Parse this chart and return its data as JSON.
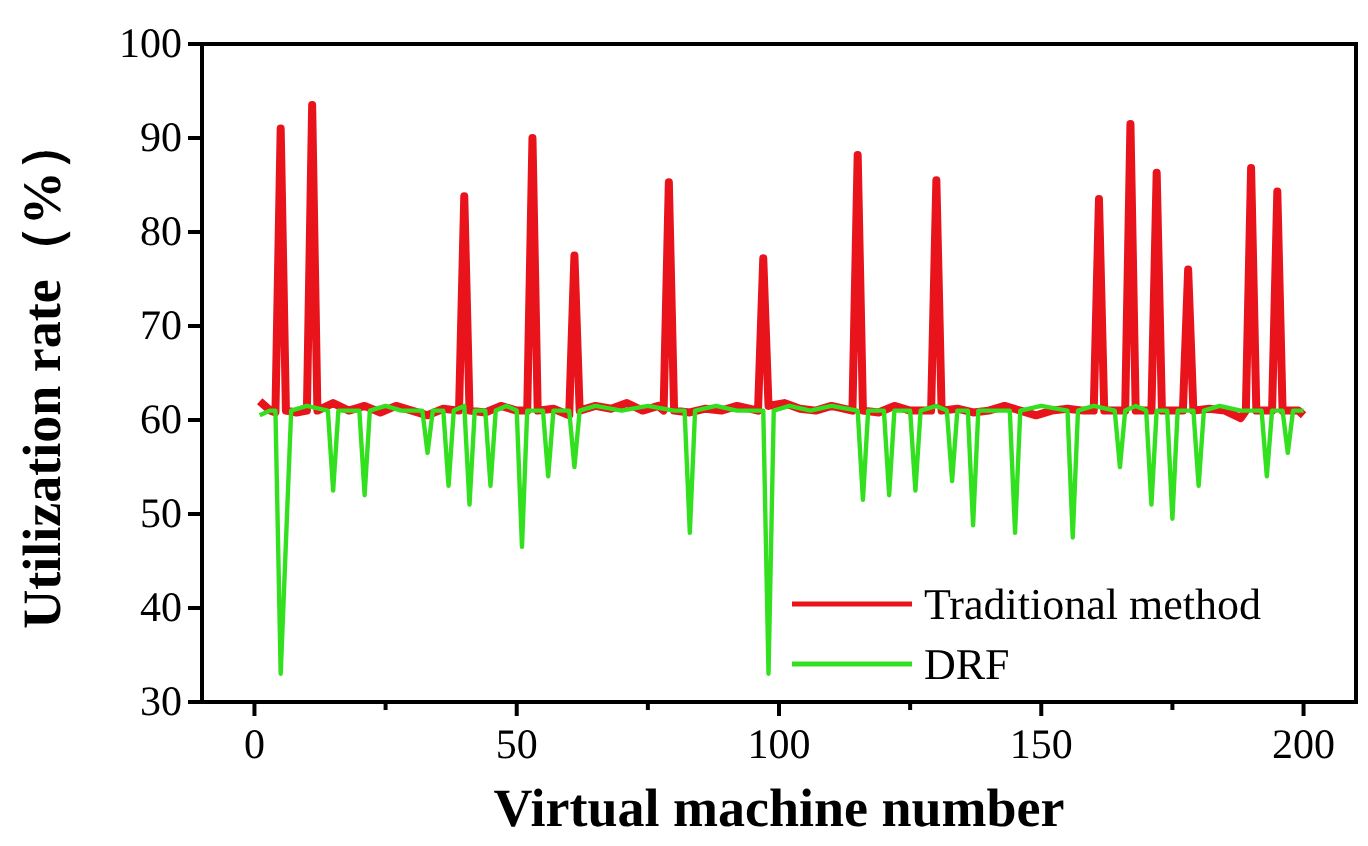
{
  "chart_data": {
    "type": "line",
    "xlabel": "Virtual machine number",
    "ylabel": "Utilization rate（%）",
    "xlim": [
      -10,
      210
    ],
    "ylim": [
      30,
      100
    ],
    "xticks": [
      0,
      {
        "value": 25,
        "label": null
      },
      50,
      {
        "value": 75,
        "label": null
      },
      100,
      {
        "value": 125,
        "label": null
      },
      150,
      {
        "value": 175,
        "label": null
      },
      200
    ],
    "yticks": [
      30,
      40,
      50,
      60,
      70,
      80,
      90,
      100
    ],
    "legend": "bottom right",
    "grid": false,
    "marker": "none",
    "line_style": "solid",
    "series": [
      {
        "name": "Traditional method",
        "color": "#e8131b",
        "x": [
          1,
          3,
          4,
          5,
          6,
          8,
          10,
          11,
          12,
          15,
          18,
          21,
          24,
          27,
          30,
          33,
          36,
          39,
          40,
          41,
          44,
          47,
          50,
          52,
          53,
          54,
          57,
          60,
          61,
          62,
          65,
          68,
          71,
          74,
          77,
          78,
          79,
          80,
          83,
          86,
          89,
          92,
          96,
          97,
          98,
          101,
          104,
          107,
          110,
          114,
          115,
          116,
          119,
          122,
          125,
          129,
          130,
          131,
          134,
          137,
          140,
          143,
          146,
          149,
          152,
          155,
          158,
          160,
          161,
          162,
          166,
          167,
          168,
          171,
          172,
          173,
          177,
          178,
          179,
          182,
          185,
          188,
          189,
          190,
          191,
          194,
          195,
          196,
          199,
          200
        ],
        "values": [
          62,
          61,
          60.8,
          91,
          61,
          60.8,
          61,
          93.5,
          61,
          61.8,
          61,
          61.5,
          60.8,
          61.5,
          61,
          60.5,
          61.2,
          61,
          83.8,
          61,
          60.8,
          61.5,
          61,
          61,
          90,
          61,
          61.2,
          60.5,
          77.5,
          61,
          61.5,
          61.2,
          61.8,
          61,
          61.5,
          61,
          85.3,
          61,
          60.8,
          61.2,
          61,
          61.5,
          61,
          77.2,
          61.5,
          61.8,
          61.2,
          61,
          61.5,
          61,
          88.2,
          61,
          60.8,
          61.5,
          61,
          61,
          85.5,
          61,
          61.2,
          60.8,
          61,
          61.5,
          61,
          60.5,
          61,
          61.2,
          61,
          61,
          83.5,
          61,
          61,
          91.5,
          61,
          61,
          86.3,
          61,
          61,
          76,
          61,
          61.2,
          61,
          60.2,
          61,
          86.8,
          61,
          61,
          84.3,
          61,
          61,
          60.5
        ]
      },
      {
        "name": "DRF",
        "color": "#33e01f",
        "x": [
          1,
          3,
          4,
          5,
          7,
          10,
          14,
          15,
          16,
          20,
          21,
          22,
          25,
          28,
          32,
          33,
          34,
          36,
          37,
          38,
          40,
          41,
          42,
          44,
          45,
          46,
          48,
          50,
          51,
          52,
          55,
          56,
          57,
          60,
          61,
          62,
          65,
          70,
          75,
          80,
          82,
          83,
          84,
          88,
          92,
          97,
          98,
          99,
          102,
          106,
          110,
          115,
          116,
          117,
          120,
          121,
          122,
          125,
          126,
          127,
          130,
          132,
          133,
          134,
          136,
          137,
          138,
          142,
          144,
          145,
          146,
          150,
          155,
          156,
          157,
          160,
          164,
          165,
          166,
          168,
          170,
          171,
          172,
          174,
          175,
          176,
          179,
          180,
          181,
          184,
          188,
          192,
          193,
          194,
          196,
          197,
          198,
          200
        ],
        "values": [
          60.5,
          61,
          61,
          33,
          61,
          61.5,
          61,
          52.5,
          61,
          61,
          52,
          61,
          61.5,
          61,
          61,
          56.5,
          61,
          61,
          53,
          61,
          61.5,
          51,
          61,
          61,
          53,
          61,
          61.5,
          61,
          46.5,
          61,
          61,
          54,
          61,
          61,
          55,
          61,
          61.5,
          61,
          61.5,
          61,
          61,
          48,
          61,
          61.5,
          61,
          61,
          33,
          61,
          61.5,
          61,
          61.5,
          61,
          51.5,
          61,
          61,
          52,
          61,
          61,
          52.5,
          61,
          61.5,
          61,
          53.5,
          61,
          61,
          48.8,
          61,
          61,
          61,
          48,
          61,
          61.5,
          61,
          47.5,
          61,
          61.5,
          61,
          55,
          61,
          61.5,
          61,
          51,
          61,
          61,
          49.5,
          61,
          61,
          53,
          61,
          61.5,
          61,
          61,
          54,
          61,
          61,
          56.5,
          61,
          61
        ]
      }
    ]
  }
}
